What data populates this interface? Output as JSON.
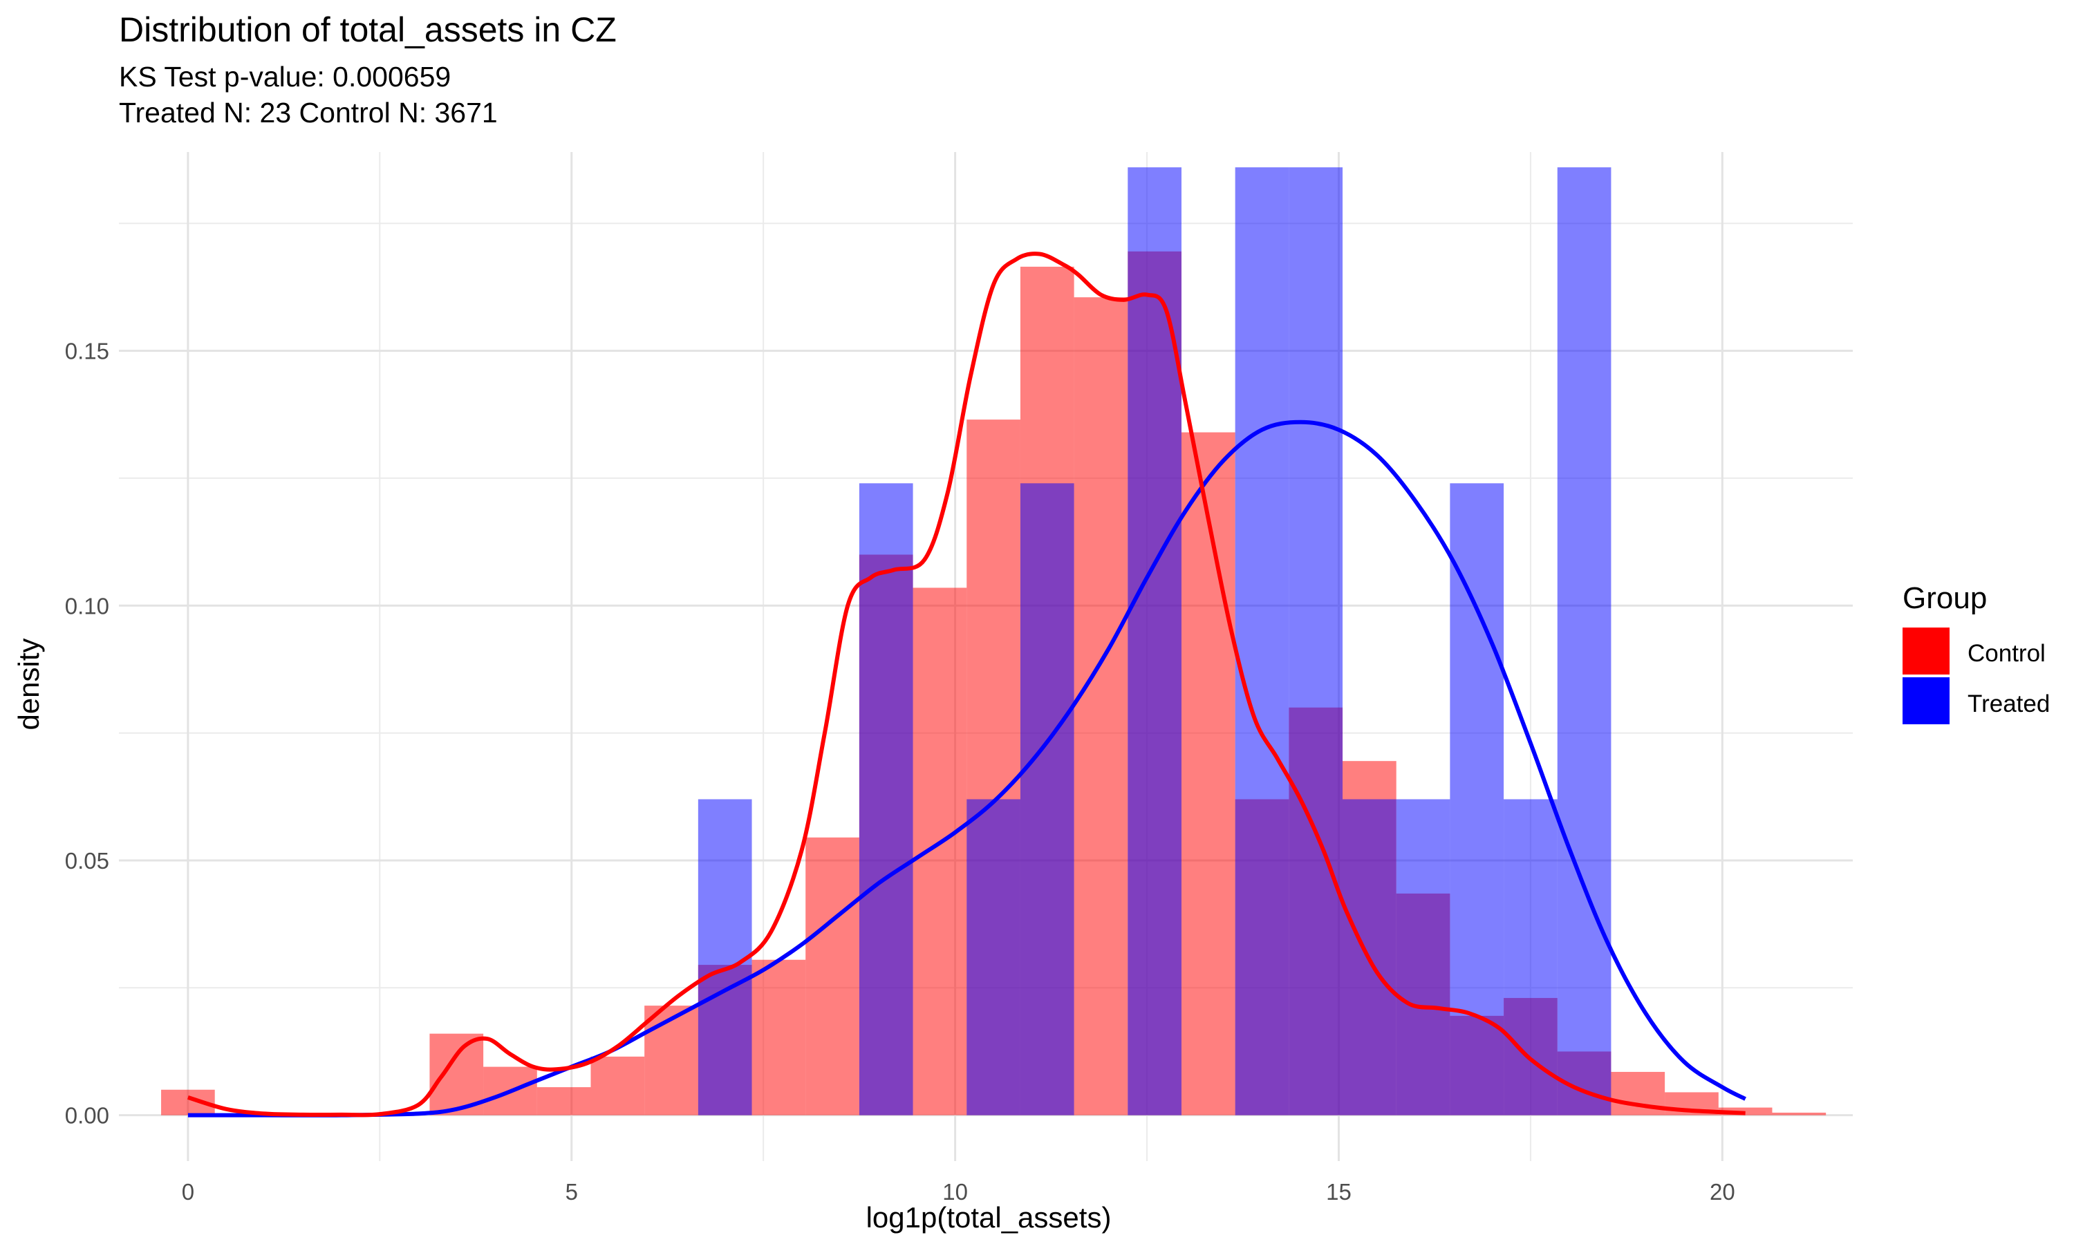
{
  "chart_data": {
    "type": "bar",
    "title": "Distribution of total_assets in CZ",
    "subtitle_line1": "KS Test p-value: 0.000659",
    "subtitle_line2": "Treated N: 23 Control N: 3671",
    "xlabel": "log1p(total_assets)",
    "ylabel": "density",
    "xlim": [
      -0.9,
      21.7
    ],
    "ylim": [
      -0.009,
      0.189
    ],
    "x_ticks": [
      0,
      5,
      10,
      15,
      20
    ],
    "x_tick_labels": [
      "0",
      "5",
      "10",
      "15",
      "20"
    ],
    "y_ticks": [
      0.0,
      0.05,
      0.1,
      0.15
    ],
    "y_tick_labels": [
      "0.00",
      "0.05",
      "0.10",
      "0.15"
    ],
    "grid": true,
    "legend": {
      "title": "Group",
      "position": "right",
      "entries": [
        {
          "name": "Control",
          "color": "#FF0000"
        },
        {
          "name": "Treated",
          "color": "#0000FF"
        }
      ]
    },
    "bin_width": 0.7,
    "series": [
      {
        "name": "Control",
        "kind": "histogram",
        "color": "#FF0000",
        "bins": [
          {
            "x0": -0.35,
            "y": 0.005
          },
          {
            "x0": 3.15,
            "y": 0.016
          },
          {
            "x0": 3.85,
            "y": 0.0095
          },
          {
            "x0": 4.55,
            "y": 0.0055
          },
          {
            "x0": 5.25,
            "y": 0.0115
          },
          {
            "x0": 5.95,
            "y": 0.0215
          },
          {
            "x0": 6.65,
            "y": 0.0295
          },
          {
            "x0": 7.35,
            "y": 0.0305
          },
          {
            "x0": 8.05,
            "y": 0.0545
          },
          {
            "x0": 8.75,
            "y": 0.11
          },
          {
            "x0": 9.45,
            "y": 0.1035
          },
          {
            "x0": 10.15,
            "y": 0.1365
          },
          {
            "x0": 10.85,
            "y": 0.1665
          },
          {
            "x0": 11.55,
            "y": 0.1605
          },
          {
            "x0": 12.25,
            "y": 0.1695
          },
          {
            "x0": 12.95,
            "y": 0.134
          },
          {
            "x0": 13.65,
            "y": 0.062
          },
          {
            "x0": 14.35,
            "y": 0.08
          },
          {
            "x0": 15.05,
            "y": 0.0695
          },
          {
            "x0": 15.75,
            "y": 0.0435
          },
          {
            "x0": 16.45,
            "y": 0.0195
          },
          {
            "x0": 17.15,
            "y": 0.023
          },
          {
            "x0": 17.85,
            "y": 0.0125
          },
          {
            "x0": 18.55,
            "y": 0.0085
          },
          {
            "x0": 19.25,
            "y": 0.0045
          },
          {
            "x0": 19.95,
            "y": 0.0015
          },
          {
            "x0": 20.65,
            "y": 0.0005
          }
        ]
      },
      {
        "name": "Treated",
        "kind": "histogram",
        "color": "#0000FF",
        "bins": [
          {
            "x0": 6.65,
            "y": 0.062
          },
          {
            "x0": 8.75,
            "y": 0.124
          },
          {
            "x0": 10.15,
            "y": 0.062
          },
          {
            "x0": 10.85,
            "y": 0.124
          },
          {
            "x0": 12.25,
            "y": 0.186
          },
          {
            "x0": 13.65,
            "y": 0.186
          },
          {
            "x0": 14.35,
            "y": 0.186
          },
          {
            "x0": 15.05,
            "y": 0.062
          },
          {
            "x0": 15.75,
            "y": 0.062
          },
          {
            "x0": 16.45,
            "y": 0.124
          },
          {
            "x0": 17.15,
            "y": 0.062
          },
          {
            "x0": 17.85,
            "y": 0.186
          }
        ]
      },
      {
        "name": "Control",
        "kind": "density",
        "color": "#FF0000",
        "x": [
          0,
          0.5,
          1,
          1.5,
          2,
          2.5,
          3,
          3.3,
          3.6,
          3.9,
          4.2,
          4.5,
          4.8,
          5.2,
          5.6,
          6.0,
          6.4,
          6.8,
          7.2,
          7.6,
          8.0,
          8.3,
          8.6,
          8.9,
          9.2,
          9.6,
          9.9,
          10.2,
          10.5,
          10.8,
          11.1,
          11.4,
          11.6,
          11.9,
          12.2,
          12.5,
          12.75,
          13.0,
          13.3,
          13.6,
          13.9,
          14.2,
          14.5,
          14.8,
          15.1,
          15.5,
          15.9,
          16.3,
          16.7,
          17.1,
          17.5,
          18.0,
          18.5,
          19.0,
          19.5,
          20.0,
          20.3
        ],
        "y": [
          0.0035,
          0.0012,
          0.0003,
          0.0001,
          0.0001,
          0.0002,
          0.002,
          0.0075,
          0.0135,
          0.015,
          0.012,
          0.0095,
          0.009,
          0.0102,
          0.0135,
          0.0185,
          0.0235,
          0.0275,
          0.03,
          0.036,
          0.052,
          0.075,
          0.1,
          0.1055,
          0.107,
          0.109,
          0.122,
          0.145,
          0.163,
          0.168,
          0.169,
          0.167,
          0.165,
          0.161,
          0.16,
          0.161,
          0.158,
          0.14,
          0.117,
          0.095,
          0.078,
          0.07,
          0.062,
          0.052,
          0.04,
          0.028,
          0.022,
          0.021,
          0.02,
          0.017,
          0.011,
          0.006,
          0.0032,
          0.0018,
          0.001,
          0.0006,
          0.0004
        ]
      },
      {
        "name": "Treated",
        "kind": "density",
        "color": "#0000FF",
        "x": [
          0,
          1,
          2,
          3,
          3.5,
          4,
          4.5,
          5,
          5.5,
          6,
          6.5,
          7,
          7.5,
          8,
          8.5,
          9,
          9.5,
          10,
          10.5,
          11,
          11.5,
          12,
          12.5,
          13,
          13.5,
          14,
          14.5,
          15,
          15.5,
          16,
          16.5,
          17,
          17.5,
          18,
          18.5,
          19,
          19.5,
          20,
          20.3
        ],
        "y": [
          0,
          0,
          0,
          0.0003,
          0.0012,
          0.0035,
          0.0065,
          0.0095,
          0.0125,
          0.0165,
          0.0205,
          0.0245,
          0.0285,
          0.0335,
          0.0395,
          0.0455,
          0.0505,
          0.0555,
          0.0615,
          0.0695,
          0.0795,
          0.0915,
          0.1055,
          0.1185,
          0.1285,
          0.1345,
          0.136,
          0.1345,
          0.1295,
          0.1205,
          0.1085,
          0.0925,
          0.073,
          0.0525,
          0.034,
          0.02,
          0.0105,
          0.0055,
          0.0032
        ]
      }
    ]
  }
}
